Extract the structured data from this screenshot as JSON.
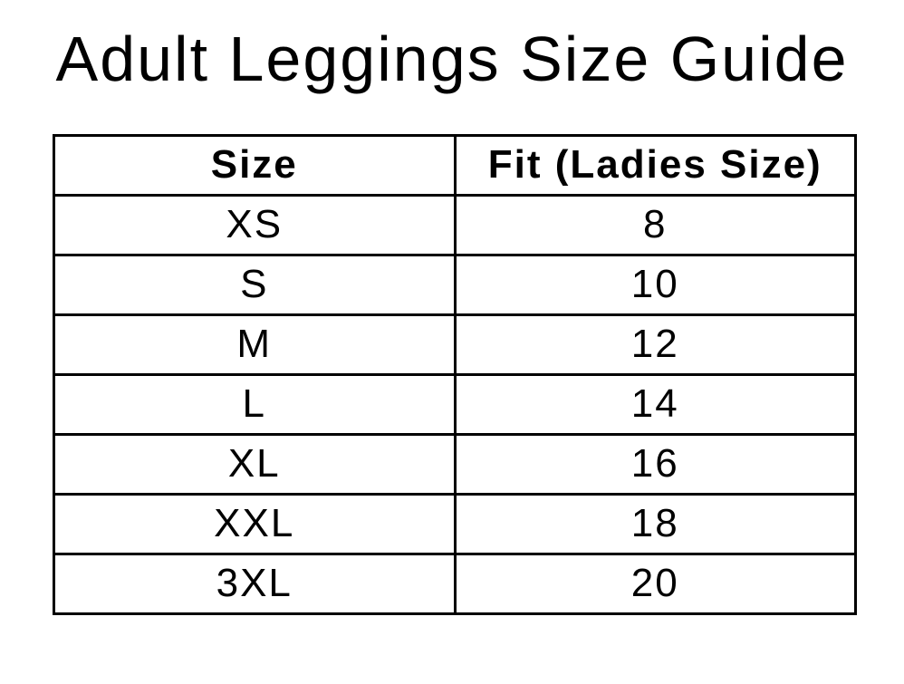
{
  "title": "Adult Leggings Size Guide",
  "table": {
    "headers": {
      "size": "Size",
      "fit": "Fit (Ladies Size)"
    },
    "rows": [
      {
        "size": "XS",
        "fit": "8"
      },
      {
        "size": "S",
        "fit": "10"
      },
      {
        "size": "M",
        "fit": "12"
      },
      {
        "size": "L",
        "fit": "14"
      },
      {
        "size": "XL",
        "fit": "16"
      },
      {
        "size": "XXL",
        "fit": "18"
      },
      {
        "size": "3XL",
        "fit": "20"
      }
    ]
  },
  "colors": {
    "background": "#ffffff",
    "text": "#000000",
    "border": "#000000"
  }
}
